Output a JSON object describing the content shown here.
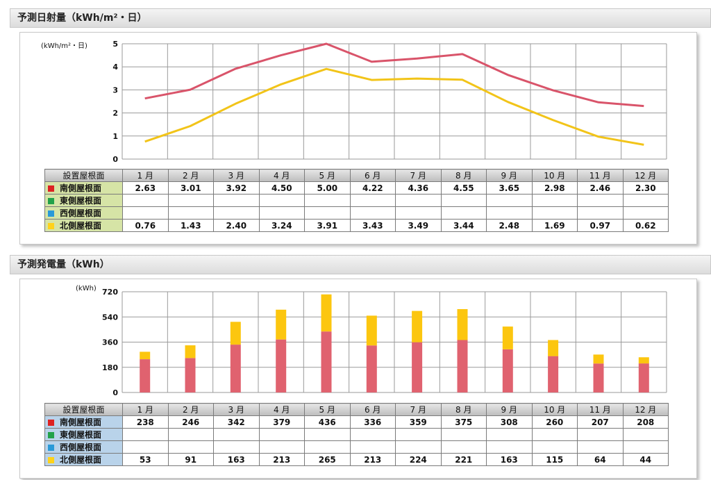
{
  "section1": {
    "title": "予測日射量（kWh/m²・日）",
    "unit": "(kWh/m²・日)"
  },
  "section2": {
    "title": "予測発電量（kWh）",
    "unit": "(kWh)"
  },
  "table_header_label": "設置屋根面",
  "months": [
    "1 月",
    "2 月",
    "3 月",
    "4 月",
    "5 月",
    "6 月",
    "7 月",
    "8 月",
    "9 月",
    "10 月",
    "11 月",
    "12 月"
  ],
  "rows": [
    {
      "label": "南側屋根面",
      "color": "#dd2222"
    },
    {
      "label": "東側屋根面",
      "color": "#22a24a"
    },
    {
      "label": "西側屋根面",
      "color": "#2a9ad8"
    },
    {
      "label": "北側屋根面",
      "color": "#ffd21a"
    }
  ],
  "table1": {
    "south": [
      "2.63",
      "3.01",
      "3.92",
      "4.50",
      "5.00",
      "4.22",
      "4.36",
      "4.55",
      "3.65",
      "2.98",
      "2.46",
      "2.30"
    ],
    "east": [
      "",
      "",
      "",
      "",
      "",
      "",
      "",
      "",
      "",
      "",
      "",
      ""
    ],
    "west": [
      "",
      "",
      "",
      "",
      "",
      "",
      "",
      "",
      "",
      "",
      "",
      ""
    ],
    "north": [
      "0.76",
      "1.43",
      "2.40",
      "3.24",
      "3.91",
      "3.43",
      "3.49",
      "3.44",
      "2.48",
      "1.69",
      "0.97",
      "0.62"
    ]
  },
  "table2": {
    "south": [
      "238",
      "246",
      "342",
      "379",
      "436",
      "336",
      "359",
      "375",
      "308",
      "260",
      "207",
      "208"
    ],
    "east": [
      "",
      "",
      "",
      "",
      "",
      "",
      "",
      "",
      "",
      "",
      "",
      ""
    ],
    "west": [
      "",
      "",
      "",
      "",
      "",
      "",
      "",
      "",
      "",
      "",
      "",
      ""
    ],
    "north": [
      "53",
      "91",
      "163",
      "213",
      "265",
      "213",
      "224",
      "221",
      "163",
      "115",
      "64",
      "44"
    ]
  },
  "chart_data": [
    {
      "type": "line",
      "ylabel": "(kWh/m²・日)",
      "ylim": [
        0,
        5
      ],
      "yticks": [
        "0",
        "1",
        "2",
        "3",
        "4",
        "5"
      ],
      "categories": [
        "1 月",
        "2 月",
        "3 月",
        "4 月",
        "5 月",
        "6 月",
        "7 月",
        "8 月",
        "9 月",
        "10 月",
        "11 月",
        "12 月"
      ],
      "series": [
        {
          "name": "南側屋根面",
          "color": "#d9546a",
          "values": [
            2.63,
            3.01,
            3.92,
            4.5,
            5.0,
            4.22,
            4.36,
            4.55,
            3.65,
            2.98,
            2.46,
            2.3
          ]
        },
        {
          "name": "北側屋根面",
          "color": "#f2c419",
          "values": [
            0.76,
            1.43,
            2.4,
            3.24,
            3.91,
            3.43,
            3.49,
            3.44,
            2.48,
            1.69,
            0.97,
            0.62
          ]
        }
      ]
    },
    {
      "type": "bar",
      "stacked": true,
      "ylabel": "(kWh)",
      "ylim": [
        0,
        720
      ],
      "yticks": [
        "0",
        "180",
        "360",
        "540",
        "720"
      ],
      "categories": [
        "1 月",
        "2 月",
        "3 月",
        "4 月",
        "5 月",
        "6 月",
        "7 月",
        "8 月",
        "9 月",
        "10 月",
        "11 月",
        "12 月"
      ],
      "series": [
        {
          "name": "南側屋根面",
          "color": "#e0626f",
          "values": [
            238,
            246,
            342,
            379,
            436,
            336,
            359,
            375,
            308,
            260,
            207,
            208
          ]
        },
        {
          "name": "北側屋根面",
          "color": "#fcc60f",
          "values": [
            53,
            91,
            163,
            213,
            265,
            213,
            224,
            221,
            163,
            115,
            64,
            44
          ]
        }
      ]
    }
  ]
}
